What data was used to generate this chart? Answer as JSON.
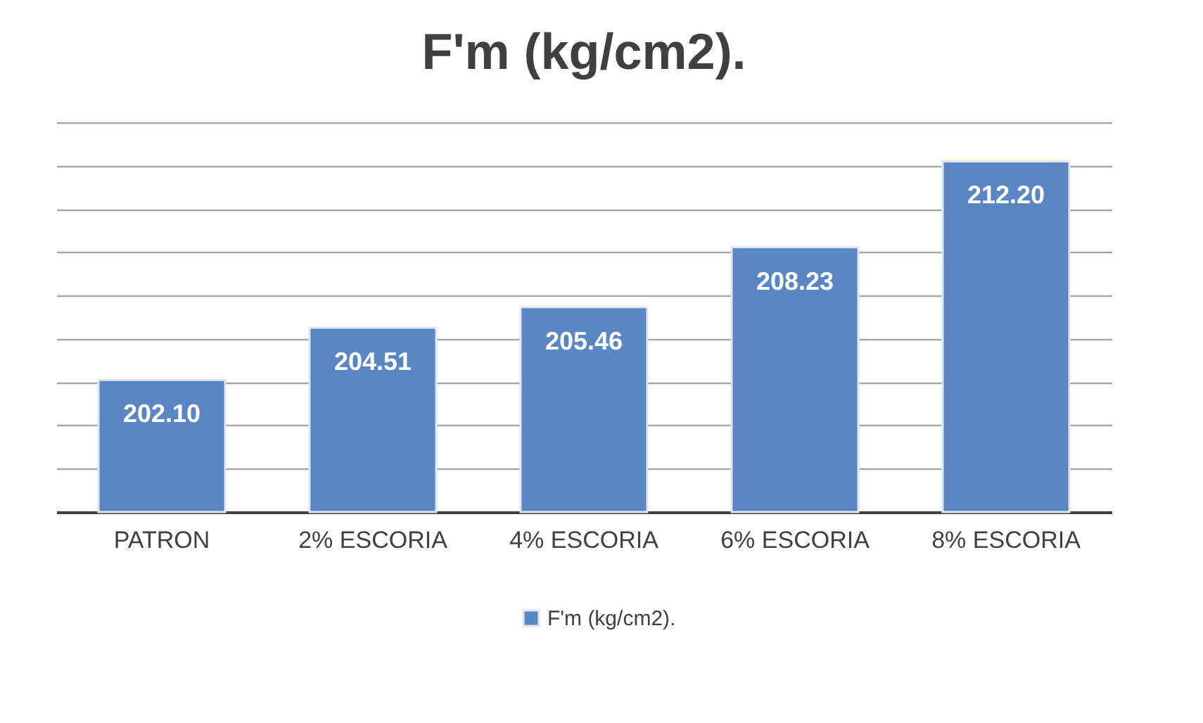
{
  "chart_data": {
    "type": "bar",
    "title": "F'm (kg/cm2).",
    "categories": [
      "PATRON",
      "2% ESCORIA",
      "4% ESCORIA",
      "6% ESCORIA",
      "8% ESCORIA"
    ],
    "series": [
      {
        "name": "F'm (kg/cm2).",
        "color": "#5b86c4",
        "values": [
          202.1,
          204.51,
          205.46,
          208.23,
          212.2
        ],
        "value_labels": [
          "202.10",
          "204.51",
          "205.46",
          "208.23",
          "212.20"
        ]
      }
    ],
    "ylim": [
      196,
      214
    ],
    "yticks": [
      {
        "value": 196,
        "label": null
      },
      {
        "value": 198,
        "label": null
      },
      {
        "value": 200,
        "label": null
      },
      {
        "value": 202,
        "label": null
      },
      {
        "value": 204,
        "label": null
      },
      {
        "value": 206,
        "label": null
      },
      {
        "value": 208,
        "label": null
      },
      {
        "value": 210,
        "label": null
      },
      {
        "value": 212,
        "label": null
      },
      {
        "value": 214,
        "label": null
      }
    ],
    "grid": "y",
    "legend": "bottom",
    "tick_labels": "x"
  }
}
